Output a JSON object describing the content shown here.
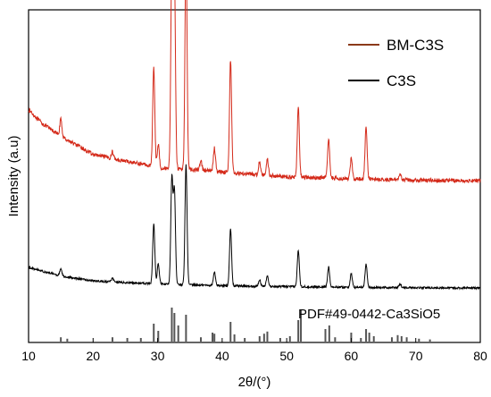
{
  "chart_data": {
    "type": "line",
    "xlabel": "2θ/(°)",
    "ylabel": "Intensity (a.u)",
    "xlim": [
      10,
      80
    ],
    "x_ticks": [
      10,
      20,
      30,
      40,
      50,
      60,
      70,
      80
    ],
    "y_ticks_shown": false,
    "legend": {
      "placement": "top-right",
      "entries": [
        {
          "label": "BM-C3S",
          "color": "#8B3A1A"
        },
        {
          "label": "C3S",
          "color": "#000000"
        }
      ]
    },
    "reference_label": "PDF#49-0442-Ca3SiO5",
    "series": [
      {
        "name": "BM-C3S",
        "color": "#d42a1a",
        "baseline": [
          [
            10,
            0.7
          ],
          [
            12,
            0.66
          ],
          [
            15,
            0.62
          ],
          [
            20,
            0.565
          ],
          [
            25,
            0.545
          ],
          [
            28,
            0.535
          ],
          [
            30,
            0.525
          ],
          [
            35,
            0.52
          ],
          [
            40,
            0.513
          ],
          [
            45,
            0.505
          ],
          [
            50,
            0.498
          ],
          [
            55,
            0.495
          ],
          [
            60,
            0.492
          ],
          [
            65,
            0.49
          ],
          [
            70,
            0.488
          ],
          [
            75,
            0.487
          ],
          [
            80,
            0.486
          ]
        ],
        "peaks": [
          [
            15.0,
            0.05
          ],
          [
            23.0,
            0.02
          ],
          [
            29.4,
            0.3
          ],
          [
            30.1,
            0.07
          ],
          [
            32.2,
            0.62
          ],
          [
            32.6,
            0.58
          ],
          [
            34.4,
            0.67
          ],
          [
            36.7,
            0.03
          ],
          [
            38.8,
            0.07
          ],
          [
            41.3,
            0.34
          ],
          [
            45.8,
            0.04
          ],
          [
            47.0,
            0.05
          ],
          [
            51.8,
            0.21
          ],
          [
            56.5,
            0.12
          ],
          [
            60.0,
            0.06
          ],
          [
            62.3,
            0.16
          ],
          [
            67.6,
            0.02
          ]
        ]
      },
      {
        "name": "C3S",
        "color": "#000000",
        "baseline": [
          [
            10,
            0.225
          ],
          [
            12,
            0.215
          ],
          [
            15,
            0.2
          ],
          [
            20,
            0.185
          ],
          [
            25,
            0.18
          ],
          [
            30,
            0.176
          ],
          [
            35,
            0.173
          ],
          [
            40,
            0.171
          ],
          [
            45,
            0.169
          ],
          [
            50,
            0.168
          ],
          [
            55,
            0.167
          ],
          [
            60,
            0.166
          ],
          [
            65,
            0.165
          ],
          [
            70,
            0.165
          ],
          [
            75,
            0.164
          ],
          [
            80,
            0.164
          ]
        ],
        "peaks": [
          [
            15.0,
            0.02
          ],
          [
            23.0,
            0.01
          ],
          [
            29.4,
            0.18
          ],
          [
            30.1,
            0.06
          ],
          [
            32.2,
            0.32
          ],
          [
            32.6,
            0.28
          ],
          [
            34.4,
            0.36
          ],
          [
            38.8,
            0.04
          ],
          [
            41.3,
            0.17
          ],
          [
            45.8,
            0.02
          ],
          [
            47.0,
            0.03
          ],
          [
            51.8,
            0.11
          ],
          [
            56.5,
            0.06
          ],
          [
            60.0,
            0.04
          ],
          [
            62.3,
            0.07
          ],
          [
            67.6,
            0.01
          ]
        ]
      }
    ],
    "reference_sticks": [
      [
        15.0,
        0.12
      ],
      [
        16.0,
        0.08
      ],
      [
        23.0,
        0.12
      ],
      [
        25.3,
        0.1
      ],
      [
        27.4,
        0.1
      ],
      [
        29.4,
        0.5
      ],
      [
        30.1,
        0.3
      ],
      [
        32.2,
        0.95
      ],
      [
        32.6,
        0.8
      ],
      [
        33.2,
        0.45
      ],
      [
        34.4,
        0.75
      ],
      [
        36.7,
        0.12
      ],
      [
        38.5,
        0.25
      ],
      [
        38.8,
        0.22
      ],
      [
        41.3,
        0.55
      ],
      [
        41.9,
        0.2
      ],
      [
        43.5,
        0.1
      ],
      [
        45.8,
        0.15
      ],
      [
        46.5,
        0.22
      ],
      [
        47.0,
        0.28
      ],
      [
        49.0,
        0.1
      ],
      [
        50.5,
        0.15
      ],
      [
        51.8,
        0.6
      ],
      [
        52.2,
        0.9
      ],
      [
        56.0,
        0.35
      ],
      [
        56.6,
        0.45
      ],
      [
        57.5,
        0.12
      ],
      [
        60.0,
        0.25
      ],
      [
        61.5,
        0.1
      ],
      [
        62.3,
        0.35
      ],
      [
        62.8,
        0.25
      ],
      [
        63.5,
        0.15
      ],
      [
        66.3,
        0.12
      ],
      [
        67.2,
        0.18
      ],
      [
        67.8,
        0.15
      ],
      [
        68.6,
        0.12
      ],
      [
        70.5,
        0.08
      ],
      [
        72.2,
        0.06
      ]
    ]
  }
}
